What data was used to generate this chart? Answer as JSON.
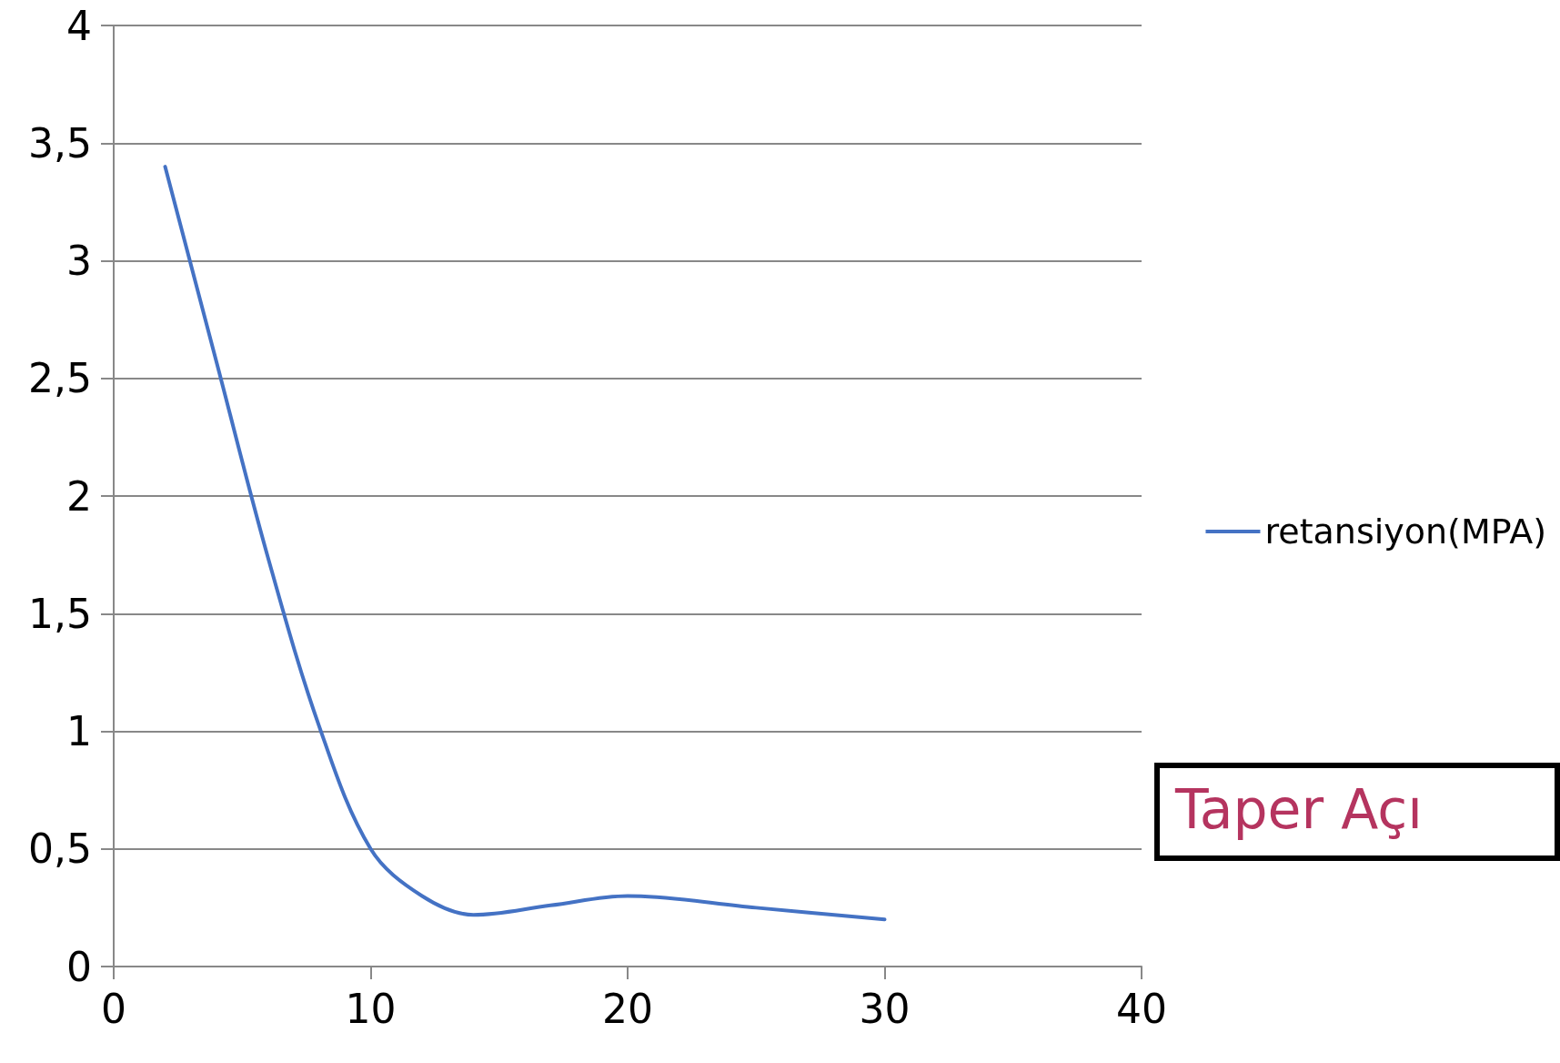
{
  "chart_data": {
    "type": "line",
    "xlabel": "Taper Açı",
    "x": [
      2,
      4,
      6,
      8,
      10,
      12,
      14,
      17,
      20,
      25,
      30
    ],
    "series": [
      {
        "name": "retansiyon(MPA)",
        "color": "#4472c4",
        "values": [
          3.4,
          2.57,
          1.74,
          1.02,
          0.5,
          0.3,
          0.22,
          0.26,
          0.3,
          0.25,
          0.2
        ]
      }
    ],
    "xlim": [
      0,
      40
    ],
    "xticks": [
      0,
      10,
      20,
      30,
      40
    ],
    "ylim": [
      0,
      4
    ],
    "yticks": [
      0,
      {
        "value": 0.5,
        "label": "0,5"
      },
      1,
      {
        "value": 1.5,
        "label": "1,5"
      },
      2,
      {
        "value": 2.5,
        "label": "2,5"
      },
      3,
      {
        "value": 3.5,
        "label": "3,5"
      },
      4
    ],
    "grid": "y",
    "legend": "right",
    "marker": "none",
    "line_style": "solid"
  }
}
